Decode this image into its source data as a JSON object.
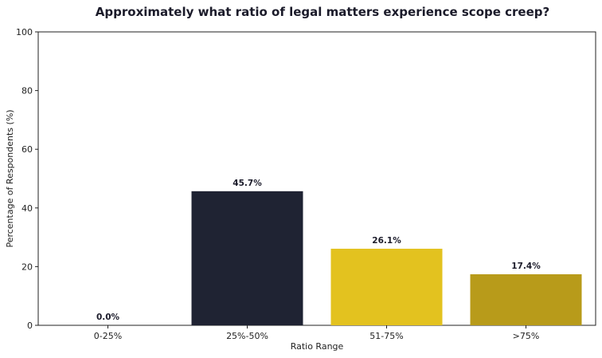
{
  "chart_data": {
    "type": "bar",
    "title": "Approximately what ratio of legal matters experience scope creep?",
    "xlabel": "Ratio Range",
    "ylabel": "Percentage of Respondents (%)",
    "categories": [
      "0-25%",
      "25%-50%",
      "51-75%",
      ">75%"
    ],
    "values": [
      0.0,
      45.7,
      26.1,
      17.4
    ],
    "value_labels": [
      "0.0%",
      "45.7%",
      "26.1%",
      "17.4%"
    ],
    "colors": [
      "#1f2333",
      "#1f2333",
      "#e3c21f",
      "#b89b1a"
    ],
    "ylim": [
      0,
      100
    ],
    "yticks": [
      0,
      20,
      40,
      60,
      80,
      100
    ],
    "grid": false,
    "legend": "none"
  }
}
